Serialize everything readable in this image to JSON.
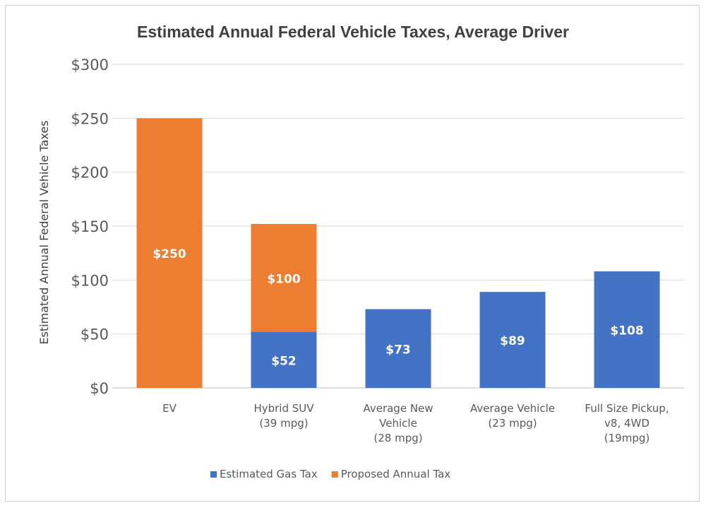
{
  "chart_data": {
    "type": "bar",
    "stacked": true,
    "title": "Estimated Annual  Federal Vehicle Taxes, Average Driver",
    "xlabel": "",
    "ylabel": "Estimated Annual Federal Vehicle Taxes",
    "ylim": [
      0,
      300
    ],
    "y_ticks": [
      0,
      50,
      100,
      150,
      200,
      250,
      300
    ],
    "y_tick_labels": [
      "$0",
      "$50",
      "$100",
      "$150",
      "$200",
      "$250",
      "$300"
    ],
    "grid": true,
    "legend_position": "bottom",
    "categories": [
      [
        "EV"
      ],
      [
        "Hybrid SUV",
        "(39 mpg)"
      ],
      [
        "Average New",
        "Vehicle",
        "(28 mpg)"
      ],
      [
        "Average Vehicle",
        "(23 mpg)"
      ],
      [
        "Full Size Pickup,",
        "v8, 4WD",
        "(19mpg)"
      ]
    ],
    "series": [
      {
        "name": "Estimated Gas Tax",
        "color": "#4472C4",
        "values": [
          0,
          52,
          73,
          89,
          108
        ],
        "labels": [
          "",
          "$52",
          "$73",
          "$89",
          "$108"
        ]
      },
      {
        "name": "Proposed Annual Tax",
        "color": "#ED7D31",
        "values": [
          250,
          100,
          0,
          0,
          0
        ],
        "labels": [
          "$250",
          "$100",
          "",
          "",
          ""
        ]
      }
    ]
  }
}
